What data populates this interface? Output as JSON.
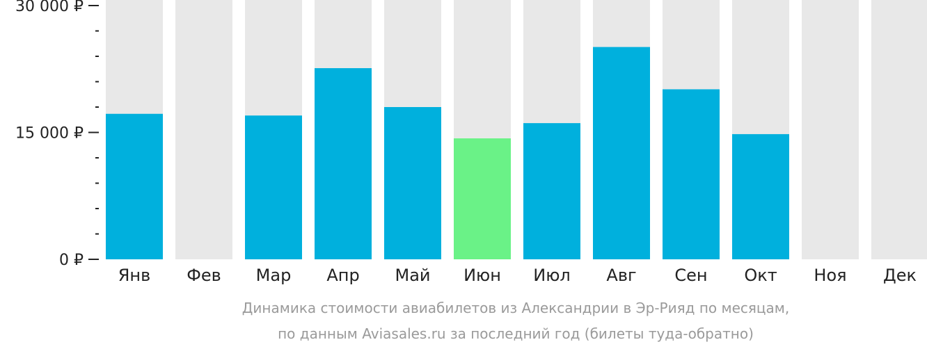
{
  "chart_data": {
    "type": "bar",
    "categories": [
      "Янв",
      "Фев",
      "Мар",
      "Апр",
      "Май",
      "Июн",
      "Июл",
      "Авг",
      "Сен",
      "Окт",
      "Ноя",
      "Дек"
    ],
    "values": [
      17200,
      null,
      17000,
      22600,
      18000,
      14300,
      16100,
      25100,
      20100,
      14800,
      null,
      null
    ],
    "highlight_index": 5,
    "ylim": [
      0,
      30000
    ],
    "y_ticks": [
      {
        "value": 0,
        "label": "0 ₽"
      },
      {
        "value": 15000,
        "label": "15 000 ₽"
      },
      {
        "value": 30000,
        "label": "30 000 ₽"
      }
    ],
    "minor_tick_count": 4,
    "grid": false,
    "colors": {
      "bar": "#00b0dd",
      "highlight": "#6af287",
      "background_bar": "#e8e8e8",
      "axis": "#222222",
      "caption": "#9a9a9a"
    },
    "caption_lines": [
      "Динамика стоимости авиабилетов из Александрии в Эр-Рияд по месяцам,",
      "по данным Aviasales.ru за последний год (билеты туда-обратно)"
    ]
  }
}
